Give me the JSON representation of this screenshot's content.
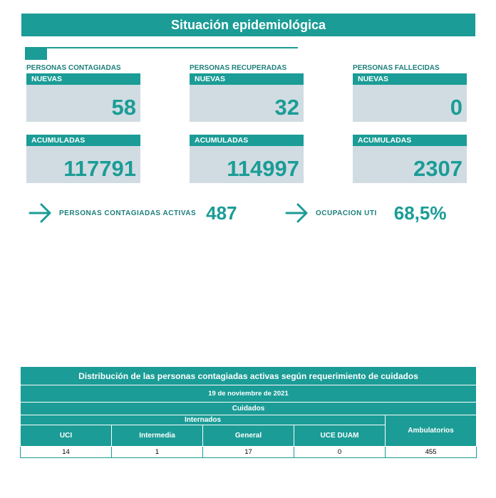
{
  "header": {
    "title": "Situación epidemiológica"
  },
  "stats": [
    {
      "group": "PERSONAS CONTAGIADAS",
      "new_label": "NUEVAS",
      "new_value": "58",
      "acum_label": "ACUMULADAS",
      "acum_value": "117791"
    },
    {
      "group": "PERSONAS RECUPERADAS",
      "new_label": "NUEVAS",
      "new_value": "32",
      "acum_label": "ACUMULADAS",
      "acum_value": "114997"
    },
    {
      "group": "PERSONAS FALLECIDAS",
      "new_label": "NUEVAS",
      "new_value": "0",
      "acum_label": "ACUMULADAS",
      "acum_value": "2307"
    }
  ],
  "highlights": {
    "active": {
      "label": "PERSONAS CONTAGIADAS ACTIVAS",
      "value": "487",
      "icon": "arrow-right-icon"
    },
    "uti": {
      "label": "OCUPACION UTI",
      "value": "68,5%",
      "icon": "arrow-right-icon"
    }
  },
  "care_table": {
    "title": "Distribución de las personas contagiadas activas según requerimiento de cuidados",
    "date": "19 de noviembre de 2021",
    "group_header": "Cuidados",
    "sub_header": "Internados",
    "columns": [
      "UCI",
      "Intermedia",
      "General",
      "UCE DUAM",
      "Ambulatorios"
    ],
    "values": [
      "14",
      "1",
      "17",
      "0",
      "455"
    ]
  },
  "colors": {
    "accent": "#1b9c96",
    "card_bg": "#d0dce2"
  }
}
